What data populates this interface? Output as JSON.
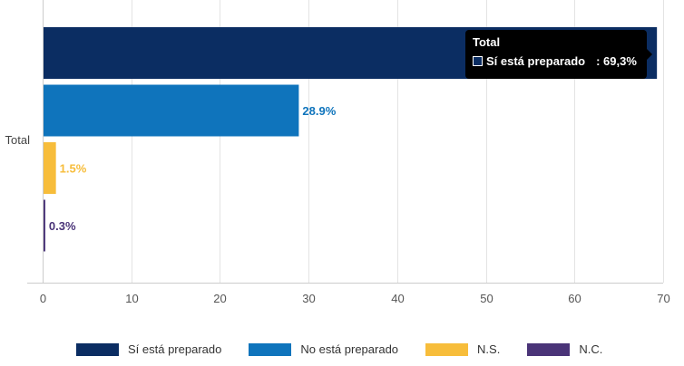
{
  "chart_data": {
    "type": "bar",
    "orientation": "horizontal",
    "categories": [
      "Total"
    ],
    "series": [
      {
        "name": "Sí está preparado",
        "values": [
          69.3
        ],
        "label": "",
        "color": "#0b2d62"
      },
      {
        "name": "No está preparado",
        "values": [
          28.9
        ],
        "label": "28.9%",
        "color": "#0f74bc"
      },
      {
        "name": "N.S.",
        "values": [
          1.5
        ],
        "label": "1.5%",
        "color": "#f7bd3b"
      },
      {
        "name": "N.C.",
        "values": [
          0.3
        ],
        "label": "0.3%",
        "color": "#4a3478"
      }
    ],
    "xlim": [
      0,
      70
    ],
    "xticks": [
      "0",
      "10",
      "20",
      "30",
      "40",
      "50",
      "60",
      "70"
    ],
    "grid": true,
    "legend_position": "bottom"
  },
  "tooltip": {
    "title": "Total",
    "series_name": "Sí está preparado",
    "value": ": 69,3%"
  }
}
